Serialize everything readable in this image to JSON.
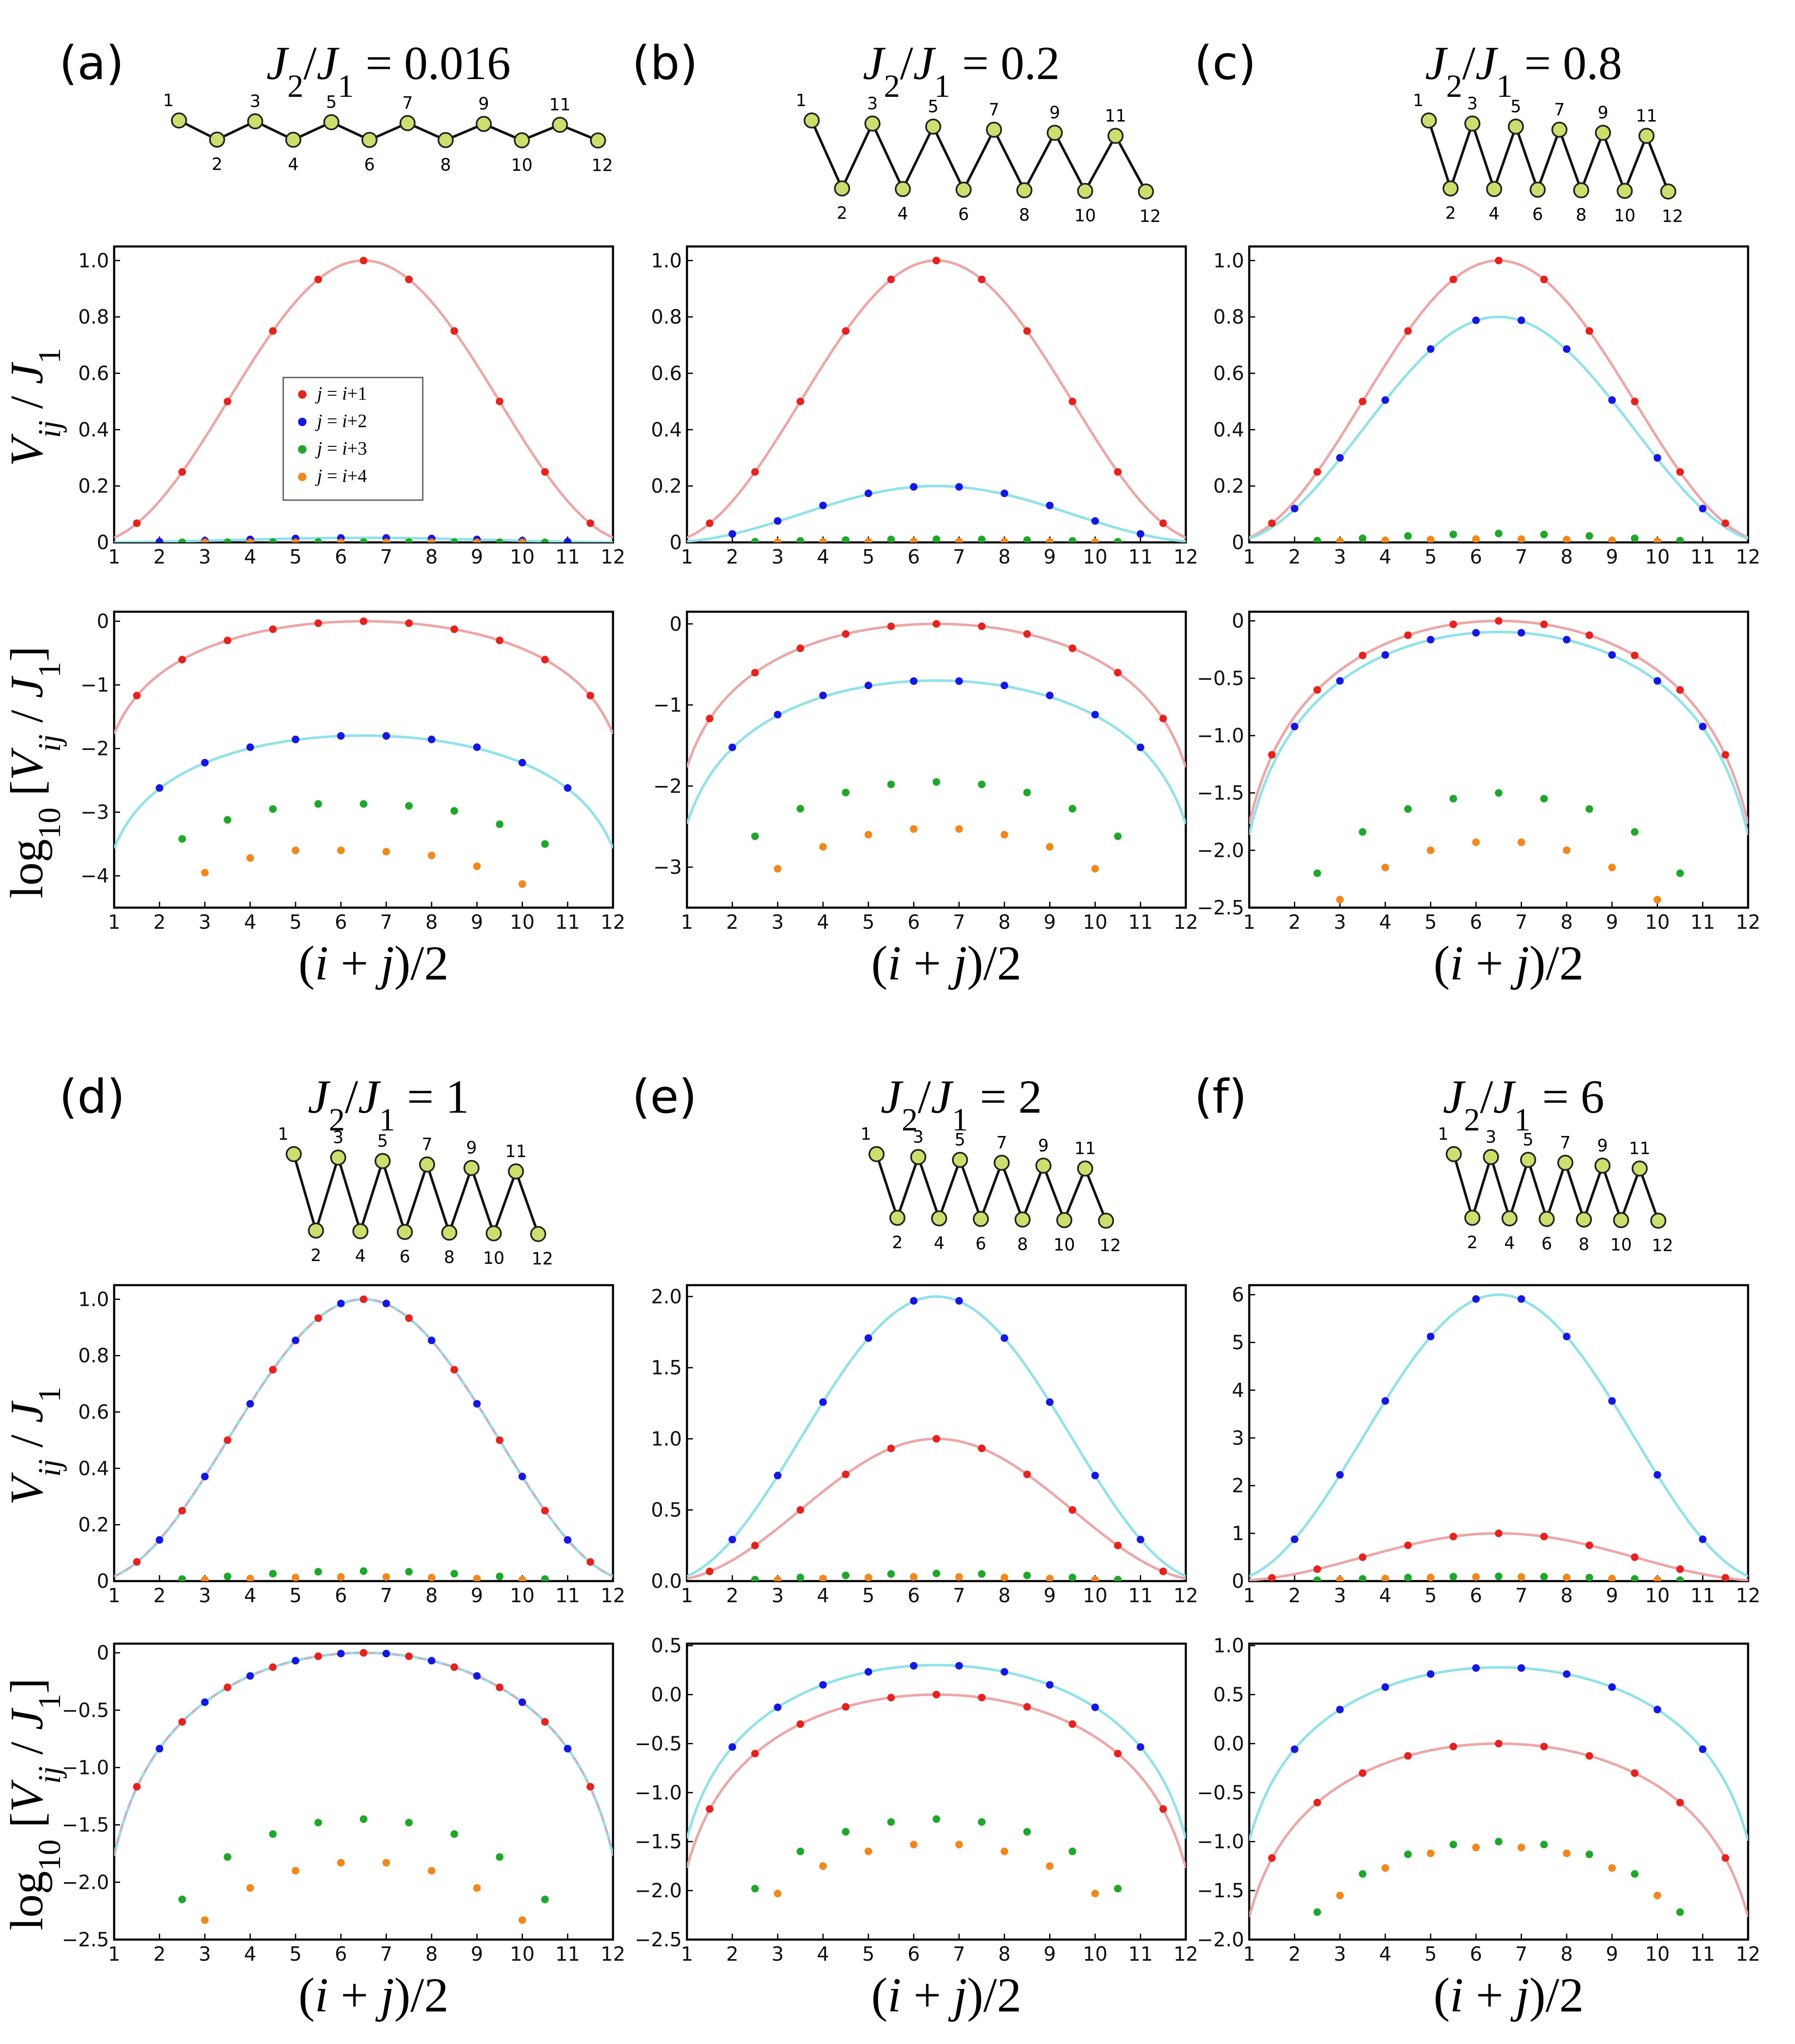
{
  "figure": {
    "y_label_linear": "V_ij / J_1",
    "y_label_log": "log10 [V_ij / J_1]",
    "x_label": "(i + j)/2",
    "legend": [
      "j = i+1",
      "j = i+2",
      "j = i+3",
      "j = i+4"
    ]
  },
  "colors": {
    "nn": "#e8211d",
    "nnn": "#1616e6",
    "third": "#1ea82a",
    "fourth": "#f2871c",
    "nn_curve": "#eda5a5",
    "nnn_curve": "#8fe1ea",
    "node_fill": "#c9e06c"
  },
  "chain_labels": [
    "1",
    "2",
    "3",
    "4",
    "5",
    "6",
    "7",
    "8",
    "9",
    "10",
    "11",
    "12"
  ],
  "chart_data": [
    {
      "panel": "(a)",
      "title": "J_2/J_1 = 0.016",
      "ratio": 0.016,
      "type": "line",
      "linear": {
        "ylim": [
          0,
          1.05
        ],
        "yticks": [
          "0",
          "0.2",
          "0.4",
          "0.6",
          "0.8",
          "1.0"
        ],
        "ytickvals": [
          0,
          0.2,
          0.4,
          0.6,
          0.8,
          1.0
        ],
        "xticks": [
          "1",
          "2",
          "3",
          "4",
          "5",
          "6",
          "7",
          "8",
          "9",
          "10",
          "11",
          "12"
        ]
      },
      "log": {
        "ylim": [
          -4.5,
          0.15
        ],
        "yticks": [
          "-4",
          "-3",
          "-2",
          "-1",
          "0"
        ],
        "ytickvals": [
          -4,
          -3,
          -2,
          -1,
          0
        ],
        "xticks": [
          "1",
          "2",
          "3",
          "4",
          "5",
          "6",
          "7",
          "8",
          "9",
          "10",
          "11",
          "12"
        ]
      },
      "series": [
        {
          "name": "j = i+1",
          "x": [
            1.5,
            2.5,
            3.5,
            4.5,
            5.5,
            6.5,
            7.5,
            8.5,
            9.5,
            10.5,
            11.5
          ],
          "values": [
            0.068,
            0.25,
            0.5,
            0.75,
            0.933,
            1.0,
            0.933,
            0.75,
            0.5,
            0.25,
            0.068
          ]
        },
        {
          "name": "j = i+2",
          "x": [
            2,
            3,
            4,
            5,
            6,
            7,
            8,
            9,
            10,
            11
          ],
          "values": [
            0.0024,
            0.006,
            0.0105,
            0.0139,
            0.0158,
            0.0158,
            0.0139,
            0.0105,
            0.006,
            0.0024
          ]
        },
        {
          "name": "j = i+3",
          "x": [
            2.5,
            3.5,
            4.5,
            5.5,
            6.5,
            7.5,
            8.5,
            9.5,
            10.5
          ],
          "log_values": [
            -3.42,
            -3.12,
            -2.95,
            -2.87,
            -2.87,
            -2.9,
            -2.98,
            -3.19,
            -3.5
          ]
        },
        {
          "name": "j = i+4",
          "x": [
            3,
            4,
            5,
            6,
            7,
            8,
            9,
            10
          ],
          "log_values": [
            -3.95,
            -3.72,
            -3.6,
            -3.6,
            -3.62,
            -3.68,
            -3.85,
            -4.13
          ]
        }
      ]
    },
    {
      "panel": "(b)",
      "title": "J_2/J_1 = 0.2",
      "ratio": 0.2,
      "type": "line",
      "linear": {
        "ylim": [
          0,
          1.05
        ],
        "yticks": [
          "0",
          "0.2",
          "0.4",
          "0.6",
          "0.8",
          "1.0"
        ],
        "ytickvals": [
          0,
          0.2,
          0.4,
          0.6,
          0.8,
          1.0
        ],
        "xticks": [
          "1",
          "2",
          "3",
          "4",
          "5",
          "6",
          "7",
          "8",
          "9",
          "10",
          "11",
          "12"
        ]
      },
      "log": {
        "ylim": [
          -3.5,
          0.15
        ],
        "yticks": [
          "-3",
          "-2",
          "-1",
          "0"
        ],
        "ytickvals": [
          -3,
          -2,
          -1,
          0
        ],
        "xticks": [
          "1",
          "2",
          "3",
          "4",
          "5",
          "6",
          "7",
          "8",
          "9",
          "10",
          "11",
          "12"
        ]
      },
      "series": [
        {
          "name": "j = i+1",
          "x": [
            1.5,
            2.5,
            3.5,
            4.5,
            5.5,
            6.5,
            7.5,
            8.5,
            9.5,
            10.5,
            11.5
          ],
          "values": [
            0.068,
            0.25,
            0.5,
            0.75,
            0.933,
            1.0,
            0.933,
            0.75,
            0.5,
            0.25,
            0.068
          ]
        },
        {
          "name": "j = i+2",
          "x": [
            2,
            3,
            4,
            5,
            6,
            7,
            8,
            9,
            10,
            11
          ],
          "values": [
            0.03,
            0.076,
            0.131,
            0.174,
            0.197,
            0.197,
            0.174,
            0.131,
            0.076,
            0.03
          ]
        },
        {
          "name": "j = i+3",
          "x": [
            2.5,
            3.5,
            4.5,
            5.5,
            6.5,
            7.5,
            8.5,
            9.5,
            10.5
          ],
          "log_values": [
            -2.62,
            -2.28,
            -2.08,
            -1.98,
            -1.95,
            -1.98,
            -2.08,
            -2.28,
            -2.62
          ]
        },
        {
          "name": "j = i+4",
          "x": [
            3,
            4,
            5,
            6,
            7,
            8,
            9,
            10
          ],
          "log_values": [
            -3.02,
            -2.75,
            -2.6,
            -2.53,
            -2.53,
            -2.6,
            -2.75,
            -3.02
          ]
        }
      ]
    },
    {
      "panel": "(c)",
      "title": "J_2/J_1 = 0.8",
      "ratio": 0.8,
      "type": "line",
      "linear": {
        "ylim": [
          0,
          1.05
        ],
        "yticks": [
          "0",
          "0.2",
          "0.4",
          "0.6",
          "0.8",
          "1.0"
        ],
        "ytickvals": [
          0,
          0.2,
          0.4,
          0.6,
          0.8,
          1.0
        ],
        "xticks": [
          "1",
          "2",
          "3",
          "4",
          "5",
          "6",
          "7",
          "8",
          "9",
          "10",
          "11",
          "12"
        ]
      },
      "log": {
        "ylim": [
          -2.5,
          0.08
        ],
        "yticks": [
          "-2.5",
          "-2.0",
          "-1.5",
          "-1.0",
          "-0.5",
          "0"
        ],
        "ytickvals": [
          -2.5,
          -2.0,
          -1.5,
          -1.0,
          -0.5,
          0
        ],
        "xticks": [
          "1",
          "2",
          "3",
          "4",
          "5",
          "6",
          "7",
          "8",
          "9",
          "10",
          "11",
          "12"
        ]
      },
      "series": [
        {
          "name": "j = i+1",
          "x": [
            1.5,
            2.5,
            3.5,
            4.5,
            5.5,
            6.5,
            7.5,
            8.5,
            9.5,
            10.5,
            11.5
          ],
          "values": [
            0.068,
            0.25,
            0.5,
            0.75,
            0.933,
            1.0,
            0.933,
            0.75,
            0.5,
            0.25,
            0.068
          ]
        },
        {
          "name": "j = i+2",
          "x": [
            2,
            3,
            4,
            5,
            6,
            7,
            8,
            9,
            10,
            11
          ],
          "values": [
            0.12,
            0.3,
            0.505,
            0.686,
            0.788,
            0.788,
            0.686,
            0.505,
            0.3,
            0.12
          ]
        },
        {
          "name": "j = i+3",
          "x": [
            2.5,
            3.5,
            4.5,
            5.5,
            6.5,
            7.5,
            8.5,
            9.5,
            10.5
          ],
          "log_values": [
            -2.2,
            -1.84,
            -1.64,
            -1.55,
            -1.5,
            -1.55,
            -1.64,
            -1.84,
            -2.2
          ]
        },
        {
          "name": "j = i+4",
          "x": [
            3,
            4,
            5,
            6,
            7,
            8,
            9,
            10
          ],
          "log_values": [
            -2.43,
            -2.15,
            -2.0,
            -1.93,
            -1.93,
            -2.0,
            -2.15,
            -2.43
          ]
        }
      ]
    },
    {
      "panel": "(d)",
      "title": "J_2/J_1 = 1",
      "ratio": 1.0,
      "type": "line",
      "linear": {
        "ylim": [
          0,
          1.05
        ],
        "yticks": [
          "0",
          "0.2",
          "0.4",
          "0.6",
          "0.8",
          "1.0"
        ],
        "ytickvals": [
          0,
          0.2,
          0.4,
          0.6,
          0.8,
          1.0
        ],
        "xticks": [
          "1",
          "2",
          "3",
          "4",
          "5",
          "6",
          "7",
          "8",
          "9",
          "10",
          "11",
          "12"
        ]
      },
      "log": {
        "ylim": [
          -2.5,
          0.08
        ],
        "yticks": [
          "-2.5",
          "-2.0",
          "-1.5",
          "-1.0",
          "-0.5",
          "0"
        ],
        "ytickvals": [
          -2.5,
          -2.0,
          -1.5,
          -1.0,
          -0.5,
          0
        ],
        "xticks": [
          "1",
          "2",
          "3",
          "4",
          "5",
          "6",
          "7",
          "8",
          "9",
          "10",
          "11",
          "12"
        ]
      },
      "series": [
        {
          "name": "j = i+1",
          "x": [
            1.5,
            2.5,
            3.5,
            4.5,
            5.5,
            6.5,
            7.5,
            8.5,
            9.5,
            10.5,
            11.5
          ],
          "values": [
            0.068,
            0.25,
            0.5,
            0.75,
            0.933,
            1.0,
            0.933,
            0.75,
            0.5,
            0.25,
            0.068
          ]
        },
        {
          "name": "j = i+2",
          "x": [
            2,
            3,
            4,
            5,
            6,
            7,
            8,
            9,
            10,
            11
          ],
          "values": [
            0.146,
            0.371,
            0.629,
            0.854,
            0.985,
            0.985,
            0.854,
            0.629,
            0.371,
            0.146
          ]
        },
        {
          "name": "j = i+3",
          "x": [
            2.5,
            3.5,
            4.5,
            5.5,
            6.5,
            7.5,
            8.5,
            9.5,
            10.5
          ],
          "log_values": [
            -2.15,
            -1.78,
            -1.58,
            -1.48,
            -1.45,
            -1.48,
            -1.58,
            -1.78,
            -2.15
          ]
        },
        {
          "name": "j = i+4",
          "x": [
            3,
            4,
            5,
            6,
            7,
            8,
            9,
            10
          ],
          "log_values": [
            -2.33,
            -2.05,
            -1.9,
            -1.83,
            -1.83,
            -1.9,
            -2.05,
            -2.33
          ]
        }
      ]
    },
    {
      "panel": "(e)",
      "title": "J_2/J_1 = 2",
      "ratio": 2.0,
      "type": "line",
      "linear": {
        "ylim": [
          0,
          2.08
        ],
        "yticks": [
          "0.0",
          "0.5",
          "1.0",
          "1.5",
          "2.0"
        ],
        "ytickvals": [
          0,
          0.5,
          1.0,
          1.5,
          2.0
        ],
        "xticks": [
          "1",
          "2",
          "3",
          "4",
          "5",
          "6",
          "7",
          "8",
          "9",
          "10",
          "11",
          "12"
        ]
      },
      "log": {
        "ylim": [
          -2.5,
          0.52
        ],
        "yticks": [
          "-2.5",
          "-2.0",
          "-1.5",
          "-1.0",
          "-0.5",
          "0.0",
          "0.5"
        ],
        "ytickvals": [
          -2.5,
          -2.0,
          -1.5,
          -1.0,
          -0.5,
          0,
          0.5
        ],
        "xticks": [
          "1",
          "2",
          "3",
          "4",
          "5",
          "6",
          "7",
          "8",
          "9",
          "10",
          "11",
          "12"
        ]
      },
      "series": [
        {
          "name": "j = i+1",
          "x": [
            1.5,
            2.5,
            3.5,
            4.5,
            5.5,
            6.5,
            7.5,
            8.5,
            9.5,
            10.5,
            11.5
          ],
          "values": [
            0.068,
            0.25,
            0.5,
            0.75,
            0.933,
            1.0,
            0.933,
            0.75,
            0.5,
            0.25,
            0.068
          ]
        },
        {
          "name": "j = i+2",
          "x": [
            2,
            3,
            4,
            5,
            6,
            7,
            8,
            9,
            10,
            11
          ],
          "values": [
            0.292,
            0.742,
            1.258,
            1.708,
            1.97,
            1.97,
            1.708,
            1.258,
            0.742,
            0.292
          ]
        },
        {
          "name": "j = i+3",
          "x": [
            2.5,
            3.5,
            4.5,
            5.5,
            6.5,
            7.5,
            8.5,
            9.5,
            10.5
          ],
          "log_values": [
            -1.98,
            -1.6,
            -1.4,
            -1.3,
            -1.27,
            -1.3,
            -1.4,
            -1.6,
            -1.98
          ]
        },
        {
          "name": "j = i+4",
          "x": [
            3,
            4,
            5,
            6,
            7,
            8,
            9,
            10
          ],
          "log_values": [
            -2.03,
            -1.75,
            -1.6,
            -1.53,
            -1.53,
            -1.6,
            -1.75,
            -2.03
          ]
        }
      ]
    },
    {
      "panel": "(f)",
      "title": "J_2/J_1 = 6",
      "ratio": 6.0,
      "type": "line",
      "linear": {
        "ylim": [
          0,
          6.2
        ],
        "yticks": [
          "0",
          "1",
          "2",
          "3",
          "4",
          "5",
          "6"
        ],
        "ytickvals": [
          0,
          1,
          2,
          3,
          4,
          5,
          6
        ],
        "xticks": [
          "1",
          "2",
          "3",
          "4",
          "5",
          "6",
          "7",
          "8",
          "9",
          "10",
          "11",
          "12"
        ]
      },
      "log": {
        "ylim": [
          -2.0,
          1.02
        ],
        "yticks": [
          "-2.0",
          "-1.5",
          "-1.0",
          "-0.5",
          "0.0",
          "0.5",
          "1.0"
        ],
        "ytickvals": [
          -2.0,
          -1.5,
          -1.0,
          -0.5,
          0,
          0.5,
          1.0
        ],
        "xticks": [
          "1",
          "2",
          "3",
          "4",
          "5",
          "6",
          "7",
          "8",
          "9",
          "10",
          "11",
          "12"
        ]
      },
      "series": [
        {
          "name": "j = i+1",
          "x": [
            1.5,
            2.5,
            3.5,
            4.5,
            5.5,
            6.5,
            7.5,
            8.5,
            9.5,
            10.5,
            11.5
          ],
          "values": [
            0.068,
            0.25,
            0.5,
            0.75,
            0.933,
            1.0,
            0.933,
            0.75,
            0.5,
            0.25,
            0.068
          ]
        },
        {
          "name": "j = i+2",
          "x": [
            2,
            3,
            4,
            5,
            6,
            7,
            8,
            9,
            10,
            11
          ],
          "values": [
            0.876,
            2.226,
            3.774,
            5.124,
            5.91,
            5.91,
            5.124,
            3.774,
            2.226,
            0.876
          ]
        },
        {
          "name": "j = i+3",
          "x": [
            2.5,
            3.5,
            4.5,
            5.5,
            6.5,
            7.5,
            8.5,
            9.5,
            10.5
          ],
          "log_values": [
            -1.72,
            -1.33,
            -1.13,
            -1.03,
            -1.0,
            -1.03,
            -1.13,
            -1.33,
            -1.72
          ]
        },
        {
          "name": "j = i+4",
          "x": [
            3,
            4,
            5,
            6,
            7,
            8,
            9,
            10
          ],
          "log_values": [
            -1.55,
            -1.27,
            -1.12,
            -1.06,
            -1.06,
            -1.12,
            -1.27,
            -1.55
          ]
        }
      ]
    }
  ]
}
